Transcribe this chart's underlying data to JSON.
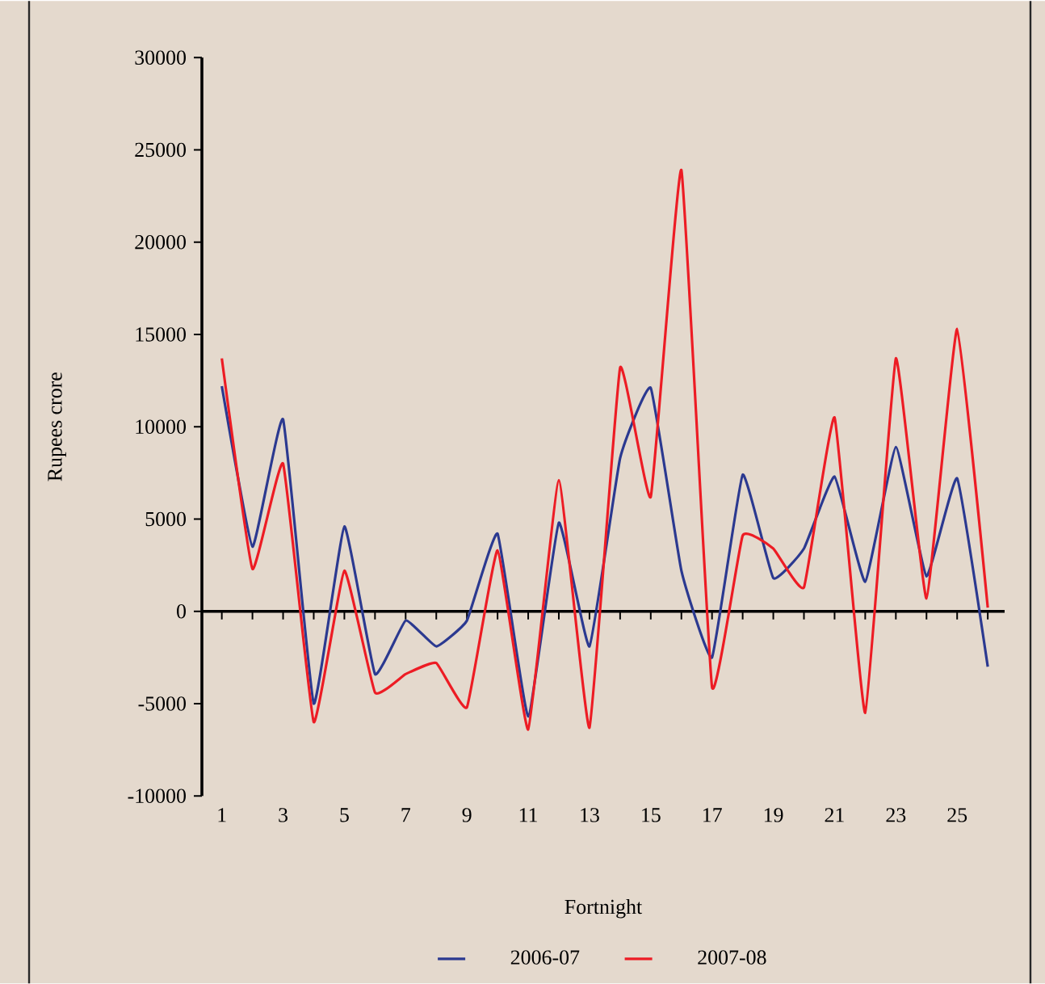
{
  "chart_data": {
    "type": "line",
    "xlabel": "Fortnight",
    "ylabel": "Rupees crore",
    "categories": [
      "1",
      null,
      "3",
      null,
      "5",
      null,
      "7",
      null,
      "9",
      null,
      "11",
      null,
      "13",
      null,
      "15",
      null,
      "17",
      null,
      "19",
      null,
      "21",
      null,
      "23",
      null,
      "25",
      null
    ],
    "series": [
      {
        "name": "2006-07",
        "color": "#2b3990",
        "values": [
          12200,
          3500,
          10400,
          -5000,
          4600,
          -3400,
          -500,
          -1900,
          -500,
          4200,
          -5700,
          4800,
          -1900,
          8300,
          12100,
          2200,
          -2500,
          7400,
          1800,
          3400,
          7300,
          1600,
          8900,
          1900,
          7200,
          -3000
        ]
      },
      {
        "name": "2007-08",
        "color": "#ed1c24",
        "values": [
          13700,
          2300,
          8000,
          -6000,
          2200,
          -4400,
          -3400,
          -2800,
          -5200,
          3300,
          -6400,
          7100,
          -6300,
          13200,
          6200,
          23900,
          -4100,
          4100,
          3400,
          1300,
          10500,
          -5500,
          13700,
          700,
          15300,
          200
        ]
      }
    ],
    "ylim": [
      -10000,
      30000
    ],
    "yticks": [
      -10000,
      -5000,
      0,
      5000,
      10000,
      15000,
      20000,
      25000,
      30000
    ],
    "legend": "bottom",
    "marker": "none",
    "line_style": "solid"
  }
}
